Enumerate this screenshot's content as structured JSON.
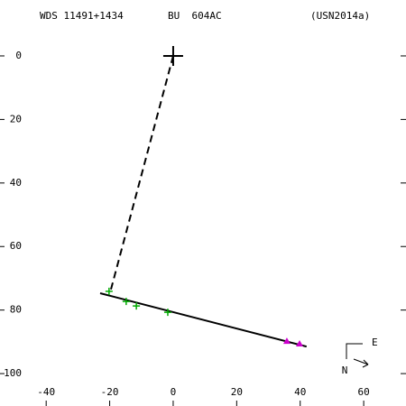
{
  "header": {
    "wds": "WDS 11491+1434",
    "pair": "BU  604AC",
    "reference": "(USN2014a)"
  },
  "chart_data": {
    "type": "scatter",
    "xlim": [
      -51.7,
      71.9
    ],
    "ylim": [
      110.2,
      -17.6
    ],
    "xticks": [
      -40,
      -20,
      0,
      20,
      40,
      60
    ],
    "yticks": [
      0,
      20,
      40,
      60,
      80,
      100
    ],
    "primary": {
      "x": 0,
      "y": 0
    },
    "observations": {
      "color": "#00aa00",
      "x": [
        -20.2,
        -14.8,
        -11.6,
        -1.7
      ],
      "y": [
        74.1,
        77.3,
        78.7,
        80.7
      ]
    },
    "recent_observations": {
      "color": "#cc00cc",
      "x": [
        35.8,
        39.8
      ],
      "y": [
        89.8,
        90.6
      ]
    },
    "fit_line": {
      "x": [
        -23,
        42
      ],
      "y": [
        74.7,
        91.5
      ]
    },
    "dashed_line": {
      "x": [
        0,
        -19.6
      ],
      "y": [
        0,
        73.5
      ]
    },
    "compass": {
      "east": "E",
      "north": "N"
    }
  }
}
